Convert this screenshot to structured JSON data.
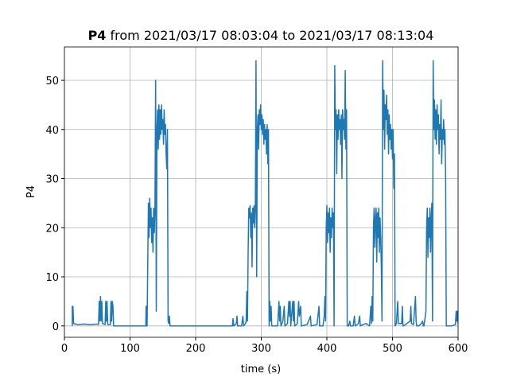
{
  "chart_data": {
    "type": "line",
    "title": {
      "bold": "P4",
      "rest": "from 2021/03/17 08:03:04 to 2021/03/17 08:13:04"
    },
    "xlabel": "time (s)",
    "ylabel": "P4",
    "color": "#1f77b4",
    "grid": true,
    "xlim": [
      0,
      600
    ],
    "xticks": [
      0,
      100,
      200,
      300,
      400,
      500,
      600
    ],
    "ylim": [
      -2.3,
      56.8
    ],
    "yticks": [
      0,
      10,
      20,
      30,
      40,
      50
    ],
    "x": [
      12,
      12,
      13,
      14,
      20,
      30,
      40,
      50,
      52,
      53,
      54,
      55,
      56,
      57,
      58,
      62,
      63,
      64,
      65,
      66,
      70,
      71,
      72,
      73,
      74,
      75,
      100,
      124,
      124.5,
      125,
      126,
      127,
      128,
      129,
      130,
      131,
      132,
      133,
      134,
      135,
      136,
      137,
      138,
      139,
      140,
      141,
      142,
      143,
      144,
      145,
      146,
      147,
      148,
      149,
      150,
      151,
      152,
      153,
      154,
      155,
      156,
      157,
      158,
      159,
      160,
      161,
      200,
      256,
      257,
      258,
      262,
      263,
      264,
      270,
      272,
      273,
      276,
      277,
      278,
      279,
      280,
      281,
      282,
      283,
      284,
      285,
      286,
      287,
      288,
      289,
      290,
      291,
      292,
      293,
      294,
      295,
      296,
      297,
      298,
      299,
      300,
      301,
      302,
      303,
      304,
      305,
      306,
      307,
      308,
      309,
      310,
      311,
      312,
      313,
      314,
      315,
      316,
      320,
      325,
      327,
      328,
      329,
      330,
      333,
      335,
      336,
      340,
      342,
      343,
      344,
      345,
      348,
      349,
      350,
      351,
      355,
      357,
      358,
      360,
      361,
      370,
      375,
      376,
      385,
      388,
      389,
      394,
      396,
      397,
      398,
      399,
      400,
      401,
      402,
      403,
      404,
      405,
      406,
      407,
      408,
      409,
      410,
      411,
      412,
      413,
      414,
      415,
      416,
      417,
      418,
      419,
      420,
      421,
      422,
      423,
      424,
      425,
      426,
      427,
      428,
      429,
      430,
      431,
      433,
      435,
      436,
      440,
      442,
      443,
      448,
      450,
      451,
      455,
      460,
      465,
      467,
      468,
      469,
      470,
      471,
      472,
      473,
      474,
      475,
      476,
      477,
      478,
      479,
      480,
      481,
      482,
      483,
      484,
      485,
      486,
      487,
      488,
      489,
      490,
      491,
      492,
      493,
      494,
      495,
      496,
      497,
      498,
      499,
      500,
      501,
      502,
      503,
      504,
      506,
      508,
      509,
      512,
      514,
      515,
      516,
      520,
      527,
      528,
      529,
      532,
      535,
      536,
      537,
      540,
      544,
      546,
      547,
      548,
      551,
      552,
      553,
      554,
      555,
      556,
      557,
      558,
      559,
      560,
      561,
      562,
      563,
      564,
      565,
      566,
      567,
      568,
      569,
      570,
      571,
      572,
      573,
      574,
      575,
      576,
      577,
      578,
      579,
      580,
      581,
      582,
      590,
      596,
      597,
      598,
      599,
      600
    ],
    "values": [
      0,
      4,
      4,
      0.5,
      0.3,
      0.4,
      0.3,
      0.4,
      0.3,
      5,
      1,
      6,
      1,
      5,
      0.5,
      0.3,
      5,
      1,
      5,
      0.3,
      0.3,
      5,
      1,
      5,
      4,
      0,
      0,
      0,
      4,
      0,
      0,
      13,
      25,
      18,
      26,
      20,
      24,
      17,
      22,
      15,
      24,
      19,
      24,
      50,
      3,
      40,
      44,
      36,
      45,
      38,
      44,
      39,
      45,
      40,
      42,
      37,
      44,
      39,
      41,
      35,
      32,
      40,
      1,
      0.5,
      2,
      0,
      0,
      0,
      1.5,
      0,
      0.5,
      2,
      0,
      0,
      2,
      0,
      0.5,
      1,
      7,
      1,
      15,
      24,
      22,
      24.5,
      18,
      23,
      12,
      24,
      21,
      24.5,
      20,
      24,
      54,
      10,
      40,
      43,
      36,
      44,
      41,
      45,
      40,
      43,
      39,
      42,
      37,
      41,
      38,
      40,
      35,
      41,
      33,
      40,
      0,
      5,
      1,
      4,
      0,
      0,
      0,
      5,
      1,
      4,
      0,
      1,
      4,
      0,
      0.5,
      5,
      2,
      5,
      0,
      5,
      1,
      5,
      0,
      0.5,
      5,
      2,
      4,
      0,
      0.3,
      2,
      0,
      0.3,
      4,
      0,
      0,
      2,
      6,
      1,
      20,
      24.5,
      17,
      23,
      19,
      24,
      15,
      22,
      18,
      24,
      20,
      23,
      0,
      53,
      40,
      44,
      31,
      43,
      38,
      44,
      40,
      42,
      37,
      43,
      30,
      44,
      40,
      42,
      38,
      52,
      36,
      44,
      0,
      0,
      1,
      0,
      0,
      2,
      0,
      0.5,
      2,
      0,
      0.3,
      0.5,
      0,
      4,
      0.5,
      6,
      1,
      20,
      24,
      16,
      22,
      24,
      13,
      23,
      18,
      24,
      15,
      22,
      18,
      12,
      1,
      54,
      40,
      48,
      36,
      45,
      42,
      47,
      39,
      44,
      35,
      43,
      38,
      41,
      36,
      40,
      34,
      40,
      28,
      35,
      0,
      0.5,
      5,
      0.5,
      0.5,
      0.5,
      4,
      0,
      0.3,
      1,
      4,
      0.5,
      0.3,
      6,
      1,
      0,
      0,
      0.5,
      1,
      0,
      0,
      3,
      20,
      24,
      14,
      22,
      18,
      24,
      15,
      22,
      25,
      1,
      54,
      40,
      46,
      38,
      44,
      37,
      45,
      40,
      43,
      35,
      41,
      38,
      46,
      33,
      40,
      38,
      42,
      37,
      40,
      30,
      0,
      0,
      0.3,
      3,
      1,
      3,
      0.5
    ]
  }
}
